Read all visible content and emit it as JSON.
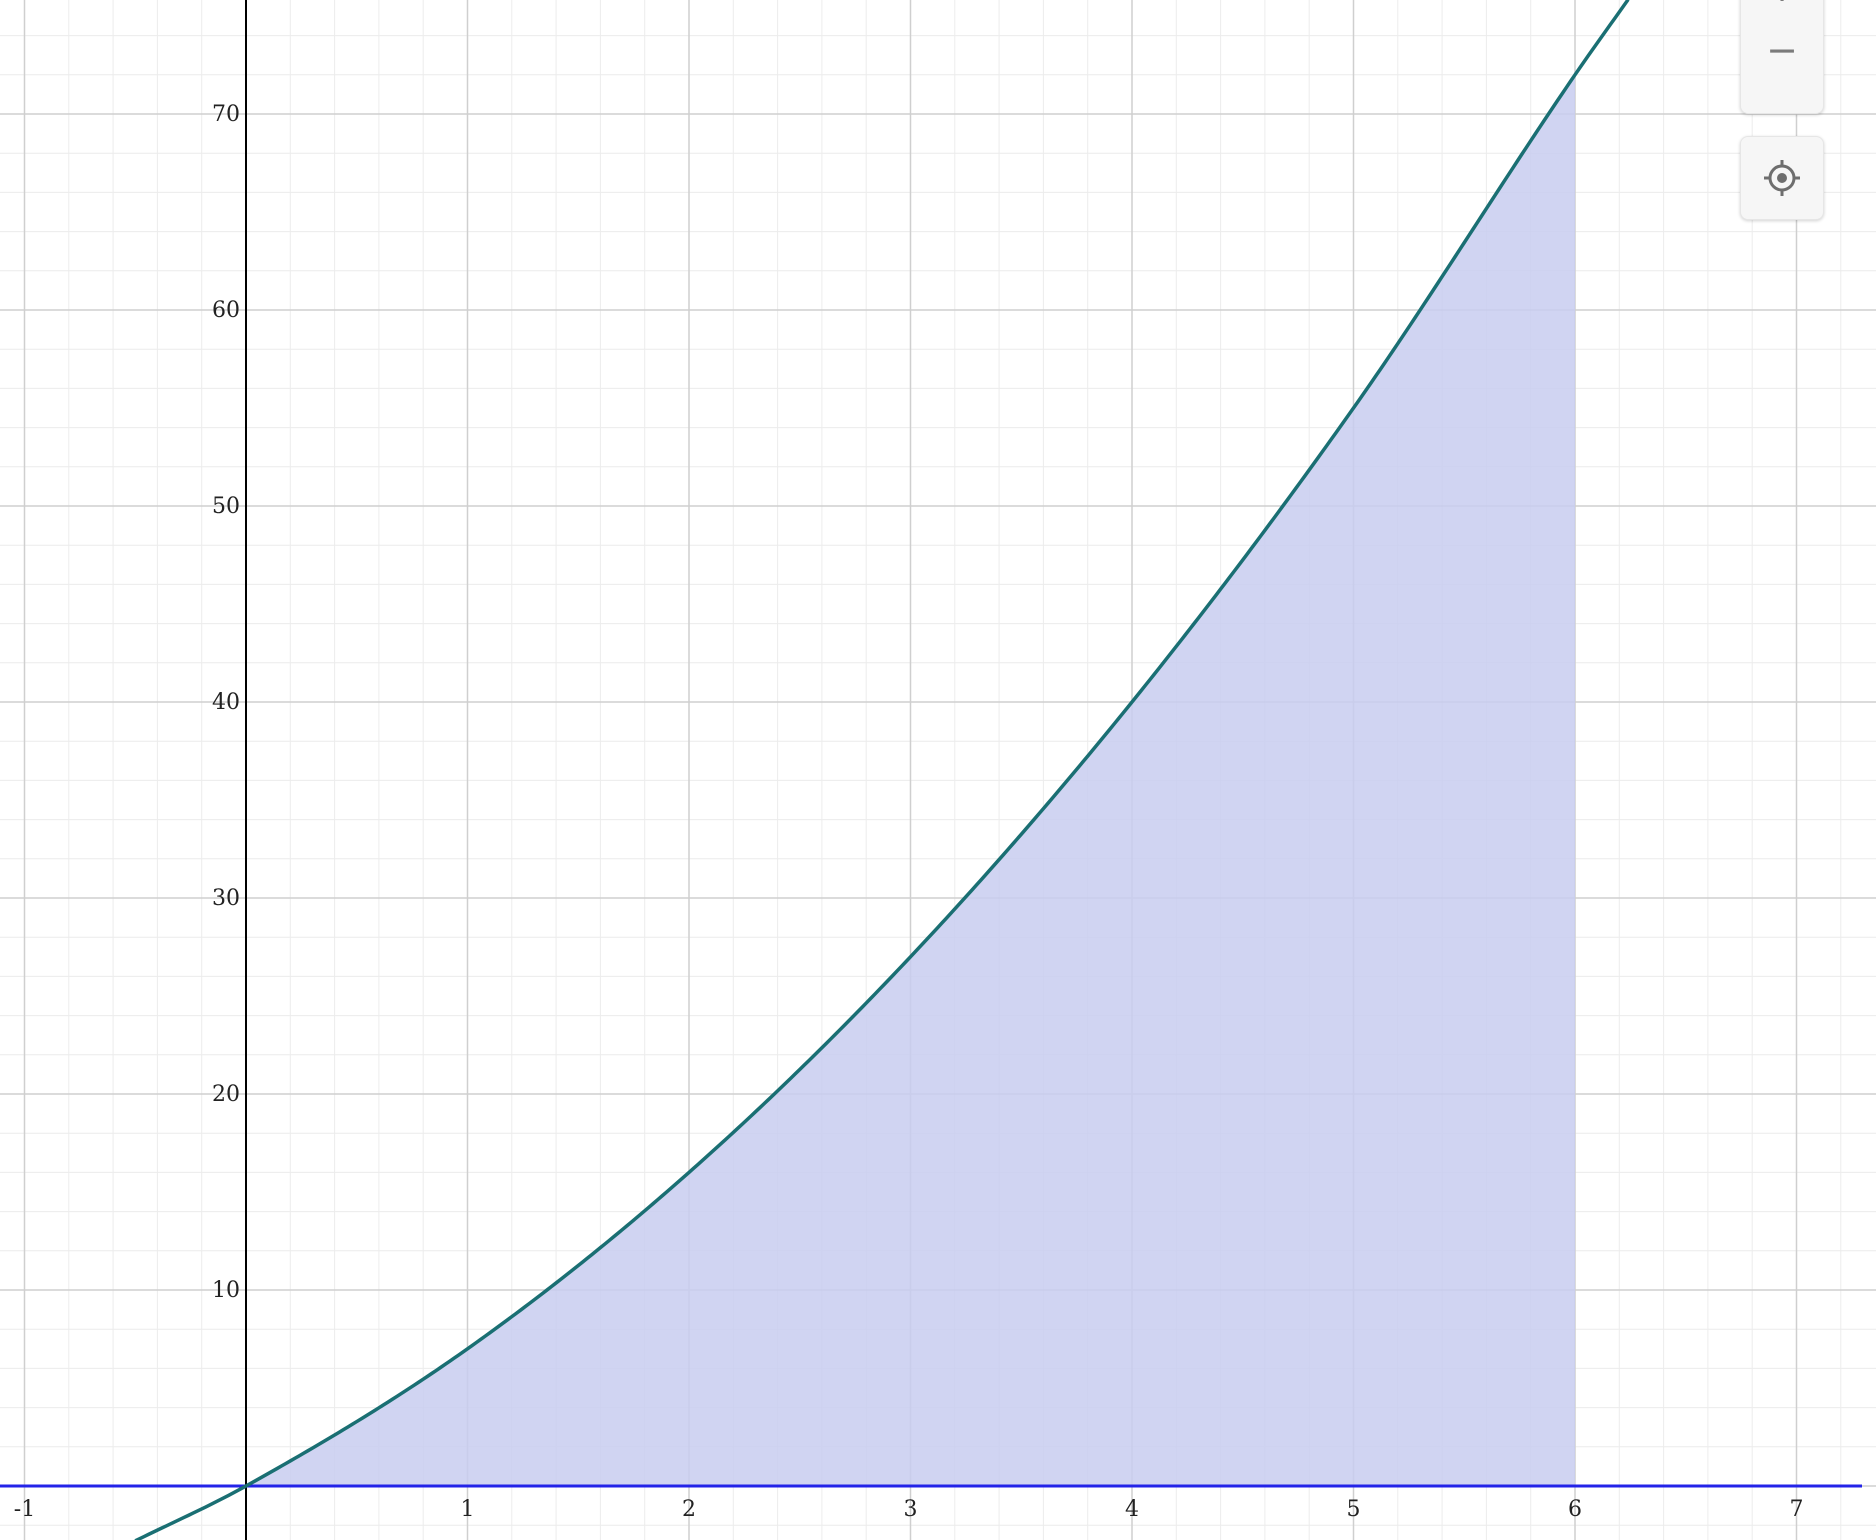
{
  "chart_data": {
    "type": "area",
    "xlim": [
      -1.1,
      7.3
    ],
    "ylim": [
      -2.8,
      76
    ],
    "grid": true,
    "minor_grid": true,
    "x_ticks": [
      -1,
      1,
      2,
      3,
      4,
      5,
      6,
      7
    ],
    "y_ticks": [
      10,
      20,
      30,
      40,
      50,
      60,
      70
    ],
    "curve": {
      "color": "#1a6f73",
      "description": "increasing curve through origin",
      "x": [
        -0.5,
        0,
        1,
        2,
        3,
        4,
        5,
        6,
        6.25
      ],
      "y": [
        -2.8,
        0,
        7,
        16,
        27,
        40,
        55,
        72,
        76
      ]
    },
    "shaded_region": {
      "color": "#c8ccf0",
      "x_from": 0,
      "x_to": 6,
      "bounded_below_by": "y = 0"
    },
    "horizontal_line": {
      "y": 0,
      "color": "#2323e8"
    }
  },
  "controls": {
    "zoom_in_label": "+",
    "zoom_out_label": "−",
    "recenter_icon": "crosshair-icon"
  }
}
